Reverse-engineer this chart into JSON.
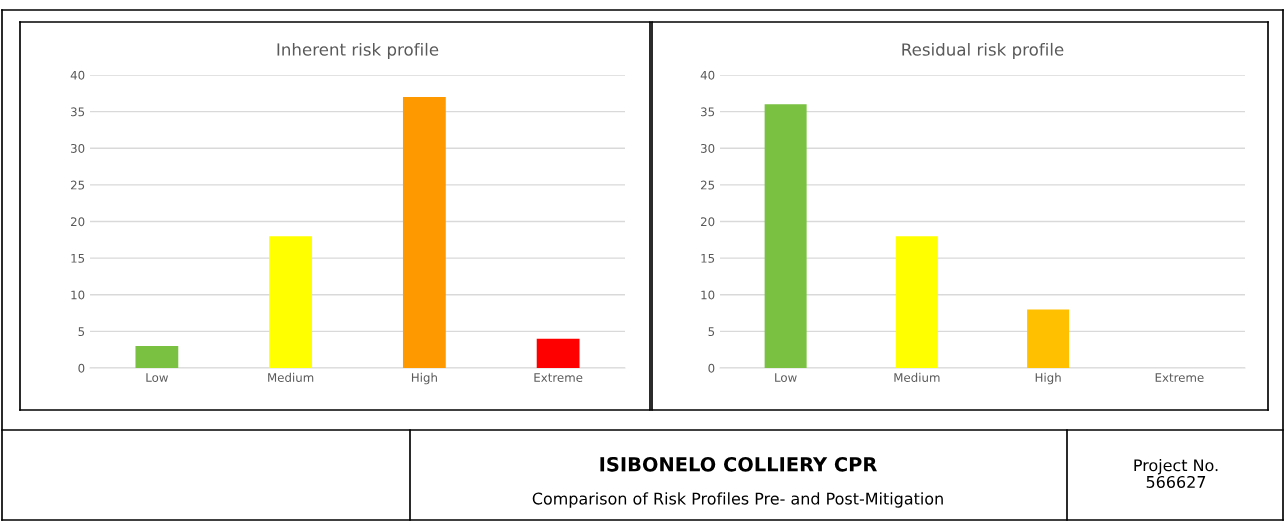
{
  "chart_data": [
    {
      "type": "bar",
      "title": "Inherent risk profile",
      "categories": [
        "Low",
        "Medium",
        "High",
        "Extreme"
      ],
      "values": [
        3,
        18,
        37,
        4
      ],
      "colors": [
        "#7ac142",
        "#ffff00",
        "#ff9900",
        "#ff0000"
      ],
      "ylim": [
        0,
        40
      ],
      "yticks": [
        0,
        5,
        10,
        15,
        20,
        25,
        30,
        35,
        40
      ],
      "grid": "y"
    },
    {
      "type": "bar",
      "title": "Residual risk profile",
      "categories": [
        "Low",
        "Medium",
        "High",
        "Extreme"
      ],
      "values": [
        36,
        18,
        8,
        0
      ],
      "colors": [
        "#7ac142",
        "#ffff00",
        "#ffc000",
        "#ff0000"
      ],
      "ylim": [
        0,
        40
      ],
      "yticks": [
        0,
        5,
        10,
        15,
        20,
        25,
        30,
        35,
        40
      ],
      "grid": "y"
    },
    {
      "type": "other",
      "title": "ISIBONELO COLLIERY CPR",
      "subtitle": "Comparison of Risk Profiles Pre- and Post-Mitigation",
      "annotations": [
        "Project No.\n566627"
      ]
    }
  ]
}
